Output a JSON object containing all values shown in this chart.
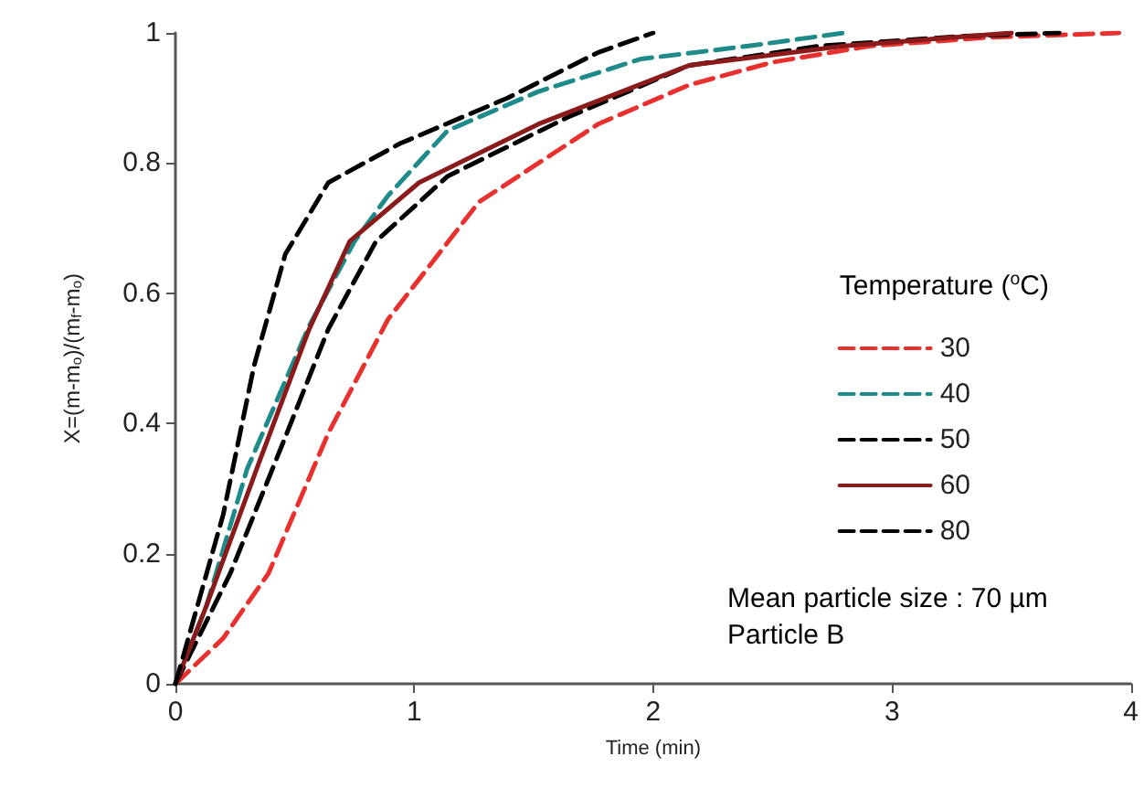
{
  "chart_data": {
    "type": "line",
    "xlabel": "Time (min)",
    "ylabel": "X=(m-m$_{o}$)/(m$_{f}$-m$_{o}$)",
    "legend_title": "Temperature ($^{o}$C)",
    "xlim": [
      0,
      4
    ],
    "xticks": [
      0,
      1,
      2,
      3,
      4
    ],
    "ylim": [
      0,
      1
    ],
    "yticks": [
      0,
      0.2,
      0.4,
      0.6,
      0.8,
      1
    ],
    "grid": false,
    "legend": "right",
    "annotations": [
      "Mean particle size : 70 µm",
      "Particle B"
    ],
    "series": [
      {
        "name": "30",
        "color": "#e8312f",
        "line_style": "dashed",
        "x": [
          0,
          0.2,
          0.39,
          0.64,
          0.89,
          1.27,
          1.77,
          2.15,
          2.5,
          2.91,
          3.4,
          3.95
        ],
        "values": [
          0,
          0.07,
          0.17,
          0.385,
          0.56,
          0.74,
          0.86,
          0.92,
          0.955,
          0.98,
          0.993,
          1
        ]
      },
      {
        "name": "40",
        "color": "#1e8a8a",
        "line_style": "dashed",
        "x": [
          0,
          0.13,
          0.3,
          0.56,
          0.75,
          0.89,
          1.14,
          1.52,
          1.95,
          2.4,
          2.8
        ],
        "values": [
          0,
          0.12,
          0.33,
          0.55,
          0.68,
          0.75,
          0.85,
          0.91,
          0.96,
          0.98,
          1
        ]
      },
      {
        "name": "50",
        "color": "#000000",
        "line_style": "dashed",
        "x": [
          0,
          0.23,
          0.45,
          0.64,
          0.84,
          1.14,
          1.64,
          2.15,
          2.7,
          3.3,
          3.7
        ],
        "values": [
          0,
          0.17,
          0.37,
          0.545,
          0.68,
          0.78,
          0.87,
          0.95,
          0.98,
          0.995,
          1
        ]
      },
      {
        "name": "60",
        "color": "#8b1a1a",
        "line_style": "solid",
        "x": [
          0,
          0.13,
          0.35,
          0.56,
          0.73,
          1.02,
          1.52,
          2.15,
          2.8,
          3.5
        ],
        "values": [
          0,
          0.12,
          0.34,
          0.545,
          0.68,
          0.77,
          0.86,
          0.95,
          0.98,
          1
        ]
      },
      {
        "name": "80",
        "color": "#000000",
        "line_style": "dashed",
        "x": [
          0,
          0.1,
          0.2,
          0.33,
          0.46,
          0.64,
          0.94,
          1.39,
          1.77,
          2.0
        ],
        "values": [
          0,
          0.13,
          0.26,
          0.49,
          0.66,
          0.77,
          0.83,
          0.9,
          0.97,
          1
        ]
      }
    ]
  }
}
